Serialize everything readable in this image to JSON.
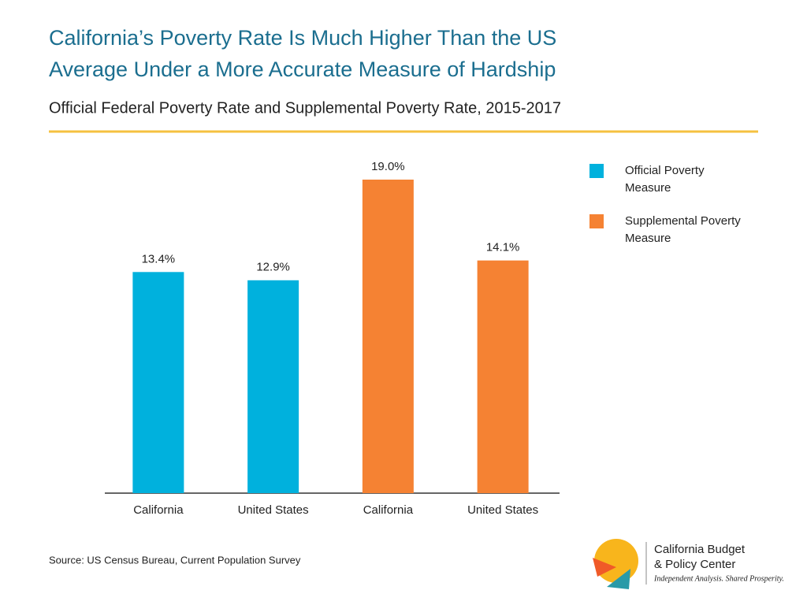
{
  "chart_data": {
    "type": "bar",
    "title": "California’s Poverty Rate Is Much Higher Than the US",
    "title_line2": "Average Under a More Accurate Measure of Hardship",
    "subtitle": "Official Federal Poverty Rate and Supplemental Poverty Rate, 2015-2017",
    "categories": [
      "California",
      "United States",
      "California",
      "United States"
    ],
    "series": [
      {
        "name": "Official Poverty Measure",
        "color": "#00b1dd",
        "values": [
          13.4,
          12.9,
          null,
          null
        ],
        "value_labels": [
          "13.4%",
          "12.9%",
          null,
          null
        ]
      },
      {
        "name": "Supplemental Poverty Measure",
        "color": "#f58233",
        "values": [
          null,
          null,
          19.0,
          14.1
        ],
        "value_labels": [
          null,
          null,
          "19.0%",
          "14.1%"
        ]
      }
    ],
    "ylim": [
      0,
      19
    ],
    "legend": "right",
    "source": "Source: US Census Bureau, Current Population Survey"
  },
  "logo": {
    "name_line1": "California Budget",
    "name_line2": "& Policy Center",
    "tagline": "Independent Analysis. Shared Prosperity."
  }
}
